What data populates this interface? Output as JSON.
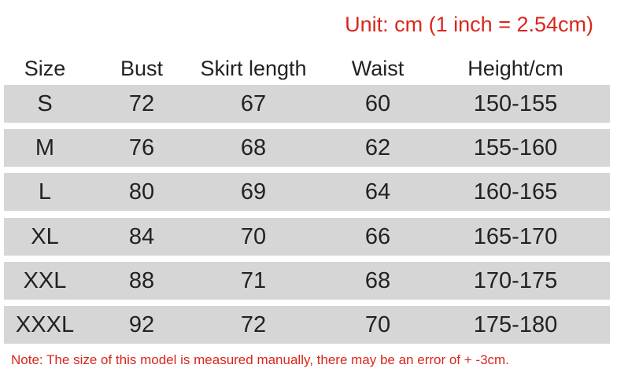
{
  "unit_note": "Unit: cm (1 inch = 2.54cm)",
  "table": {
    "header": [
      "Size",
      "Bust",
      "Skirt length",
      "Waist",
      "Height/cm"
    ],
    "rows": [
      [
        "S",
        "72",
        "67",
        "60",
        "150-155"
      ],
      [
        "M",
        "76",
        "68",
        "62",
        "155-160"
      ],
      [
        "L",
        "80",
        "69",
        "64",
        "160-165"
      ],
      [
        "XL",
        "84",
        "70",
        "66",
        "165-170"
      ],
      [
        "XXL",
        "88",
        "71",
        "68",
        "170-175"
      ],
      [
        "XXXL",
        "92",
        "72",
        "70",
        "175-180"
      ]
    ]
  },
  "footnote": "Note: The size of this model is measured manually, there may be an error of + -3cm."
}
